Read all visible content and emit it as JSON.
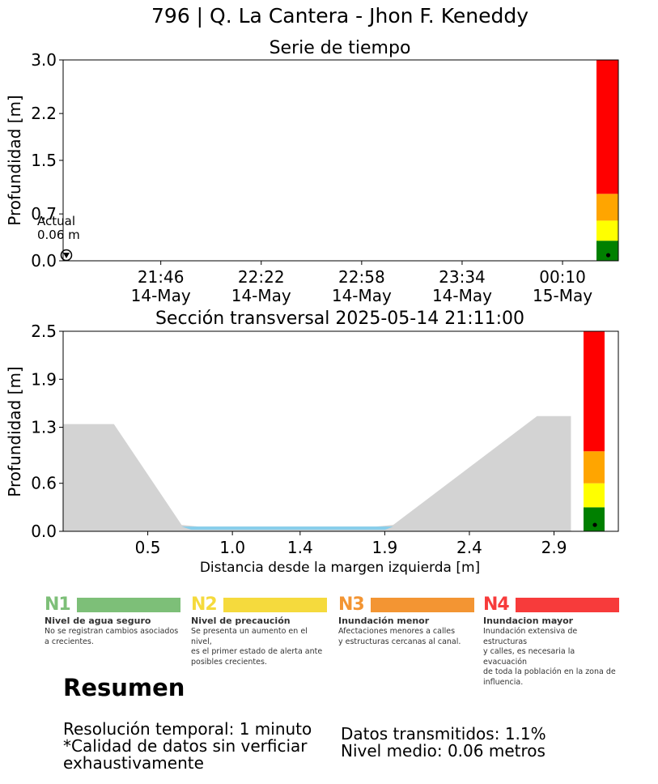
{
  "title": "796 | Q. La Cantera - Jhon F. Keneddy",
  "colors": {
    "green": "#008000",
    "yellow": "#ffff00",
    "orange": "#ffa500",
    "red": "#ff0000",
    "ground": "#d3d3d3",
    "water": "#87ceeb"
  },
  "chart_data": [
    {
      "type": "line",
      "title": "Serie de tiempo",
      "ylabel": "Profundidad [m]",
      "ylim": [
        0,
        3.0
      ],
      "y_ticks": [
        "0.0",
        "0.7",
        "1.5",
        "2.2",
        "3.0"
      ],
      "x_ticks": [
        {
          "time": "21:46",
          "date": "14-May"
        },
        {
          "time": "22:22",
          "date": "14-May"
        },
        {
          "time": "22:58",
          "date": "14-May"
        },
        {
          "time": "23:34",
          "date": "14-May"
        },
        {
          "time": "00:10",
          "date": "15-May"
        }
      ],
      "x_range": [
        "2025-05-14 21:11",
        "2025-05-15 00:30"
      ],
      "series": [
        {
          "values": [
            {
              "x": "2025-05-14 21:11",
              "y": 0.06
            }
          ]
        }
      ],
      "annotation": {
        "line1": "Actual",
        "line2": "0.06 m"
      },
      "level_bands": [
        0.3,
        0.6,
        1.0,
        3.0
      ],
      "current_level": 0.06
    },
    {
      "type": "area",
      "title": "Sección transversal 2025-05-14 21:11:00",
      "xlabel": "Distancia desde la margen izquierda [m]",
      "ylabel": "Profundidad [m]",
      "ylim": [
        0,
        2.5
      ],
      "xlim": [
        0,
        3.28
      ],
      "y_ticks": [
        "0.0",
        "0.6",
        "1.3",
        "1.9",
        "2.5"
      ],
      "x_ticks": [
        "0.5",
        "1.0",
        "1.4",
        "1.9",
        "2.4",
        "2.9"
      ],
      "ground_profile": {
        "x": [
          0,
          0.3,
          0.7,
          0.8,
          1.85,
          1.95,
          2.8,
          3.0
        ],
        "y": [
          1.34,
          1.34,
          0.08,
          0.06,
          0.06,
          0.08,
          1.44,
          1.44
        ]
      },
      "water_level": 0.06,
      "water_x": [
        0.7,
        1.95
      ],
      "level_bands": [
        0.3,
        0.6,
        1.0,
        2.5
      ],
      "current_level": 0.06
    }
  ],
  "legend": [
    {
      "code": "N1",
      "name": "Nivel de agua seguro",
      "desc": [
        "No se registran cambios asociados",
        "a crecientes."
      ],
      "color": "#7dbf78"
    },
    {
      "code": "N2",
      "name": "Nivel de precaución",
      "desc": [
        "Se presenta un aumento en el nivel,",
        "es el primer estado de alerta ante",
        "posibles crecientes."
      ],
      "color": "#f5da3d"
    },
    {
      "code": "N3",
      "name": "Inundación menor",
      "desc": [
        "Afectaciones menores a calles",
        "y estructuras cercanas al canal."
      ],
      "color": "#f39533"
    },
    {
      "code": "N4",
      "name": "Inundacion mayor",
      "desc": [
        "Inundación extensiva de estructuras",
        "y calles, es necesaria la evacuación",
        "de toda la población en la zona de",
        "influencia."
      ],
      "color": "#f73b3b"
    }
  ],
  "summary": {
    "title": "Resumen",
    "left": [
      "Resolución temporal: 1 minuto",
      "*Calidad de datos sin verficiar",
      "exhaustivamente"
    ],
    "right": [
      "Datos transmitidos: 1.1%",
      "Nivel medio: 0.06 metros"
    ]
  }
}
